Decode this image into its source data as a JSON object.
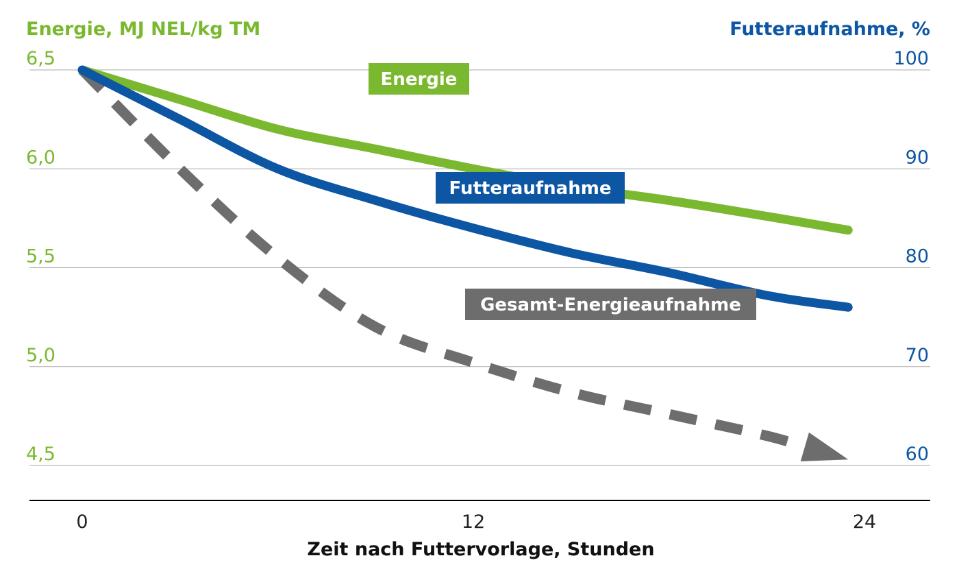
{
  "chart_data": {
    "type": "line",
    "xlabel": "Zeit nach Futtervorlage, Stunden",
    "x_ticks": [
      0,
      12,
      24
    ],
    "xlim": [
      0,
      24
    ],
    "y_left": {
      "label": "Energie, MJ NEL/kg TM",
      "ticks": [
        "6,5",
        "6,0",
        "5,5",
        "5,0",
        "4,5"
      ],
      "tick_values": [
        6.5,
        6.0,
        5.5,
        5.0,
        4.5
      ],
      "range": [
        4.5,
        6.5
      ],
      "color": "#7ab82f"
    },
    "y_right": {
      "label": "Futteraufnahme, %",
      "ticks": [
        "100",
        "90",
        "80",
        "70",
        "60"
      ],
      "tick_values": [
        100,
        90,
        80,
        70,
        60
      ],
      "range": [
        60,
        100
      ],
      "color": "#0d56a3"
    },
    "grid": true,
    "series": [
      {
        "name": "Energie",
        "axis": "left",
        "color": "#7ab82f",
        "style": "solid",
        "x": [
          0,
          3,
          6,
          9,
          12,
          15,
          18,
          21,
          23.5
        ],
        "y": [
          6.5,
          6.35,
          6.2,
          6.1,
          6.0,
          5.91,
          5.84,
          5.76,
          5.69
        ]
      },
      {
        "name": "Futteraufnahme",
        "axis": "right",
        "color": "#0d56a3",
        "style": "solid",
        "x": [
          0,
          3,
          6,
          9,
          12,
          15,
          18,
          21,
          23.5
        ],
        "y": [
          100,
          95,
          90,
          86.8,
          84,
          81.5,
          79.5,
          77.2,
          76
        ]
      },
      {
        "name": "Gesamt-Energieaufnahme",
        "axis": "left",
        "color": "#6d6d6d",
        "style": "dashed-arrow",
        "x": [
          0,
          3,
          6,
          9,
          12,
          15,
          18,
          21,
          23.5
        ],
        "y": [
          6.5,
          6.0,
          5.55,
          5.2,
          5.02,
          4.87,
          4.76,
          4.65,
          4.53
        ]
      }
    ]
  }
}
